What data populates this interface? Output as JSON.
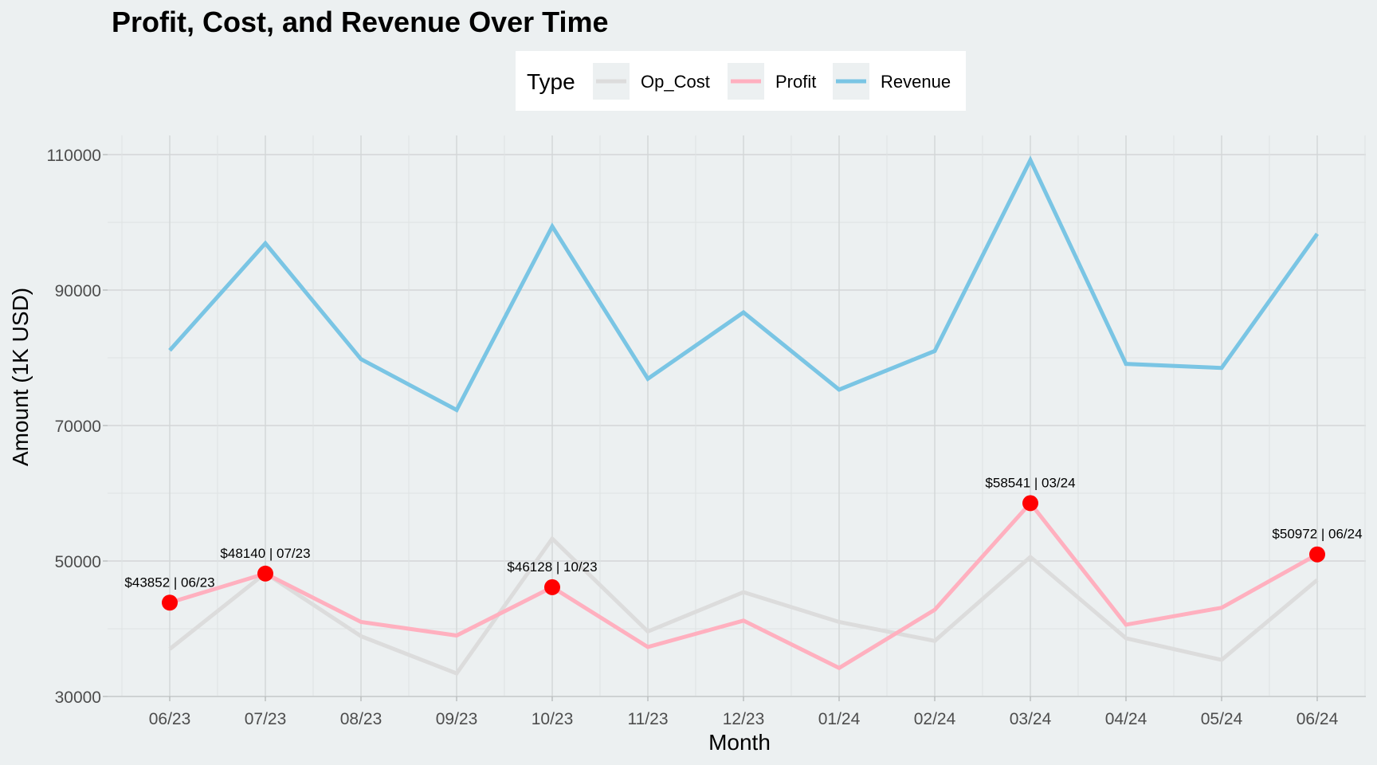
{
  "chart_data": {
    "type": "line",
    "title": "Profit, Cost, and Revenue Over Time",
    "xlabel": "Month",
    "ylabel": "Amount (1K USD)",
    "categories": [
      "06/23",
      "07/23",
      "08/23",
      "09/23",
      "10/23",
      "11/23",
      "12/23",
      "01/24",
      "02/24",
      "03/24",
      "04/24",
      "05/24",
      "06/24"
    ],
    "ylim": [
      30000,
      110000
    ],
    "yticks": [
      30000,
      50000,
      70000,
      90000,
      110000
    ],
    "yticks_labels": [
      "30000",
      "50000",
      "70000",
      "90000",
      "110000"
    ],
    "grid": true,
    "legend": {
      "title": "Type",
      "position": "top",
      "entries": [
        "Op_Cost",
        "Profit",
        "Revenue"
      ]
    },
    "series": [
      {
        "name": "Op_Cost",
        "color": "#DCDCDC",
        "values": [
          37000,
          48200,
          38900,
          33400,
          53300,
          39600,
          45400,
          41000,
          38200,
          50600,
          38600,
          35400,
          47200
        ]
      },
      {
        "name": "Profit",
        "color": "#FFB0BF",
        "values": [
          43852,
          48140,
          41000,
          39000,
          46128,
          37300,
          41200,
          34200,
          42800,
          58541,
          40600,
          43100,
          50972
        ]
      },
      {
        "name": "Revenue",
        "color": "#7AC5E4",
        "values": [
          81100,
          96900,
          79800,
          72300,
          99400,
          76900,
          86700,
          75300,
          81000,
          109200,
          79100,
          78500,
          98300
        ]
      }
    ],
    "annotations": {
      "color": "#FF0000",
      "points": [
        {
          "x": "06/23",
          "y": 43852,
          "label": "$43852 | 06/23"
        },
        {
          "x": "07/23",
          "y": 48140,
          "label": "$48140 | 07/23"
        },
        {
          "x": "10/23",
          "y": 46128,
          "label": "$46128 | 10/23"
        },
        {
          "x": "03/24",
          "y": 58541,
          "label": "$58541 | 03/24"
        },
        {
          "x": "06/24",
          "y": 50972,
          "label": "$50972 | 06/24"
        }
      ]
    }
  }
}
